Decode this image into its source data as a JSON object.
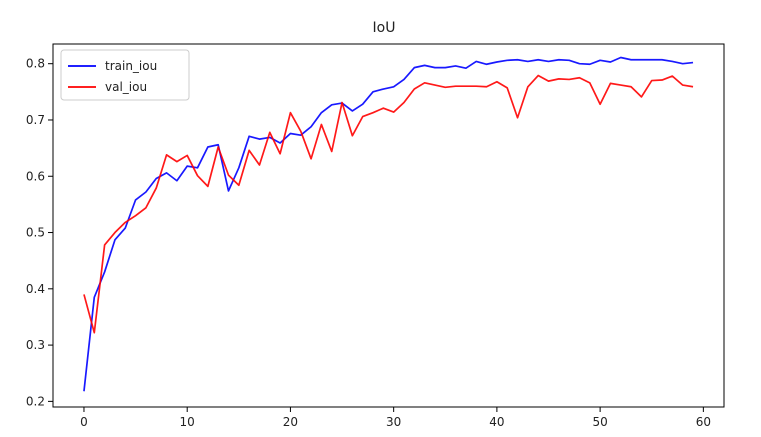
{
  "chart_data": {
    "type": "line",
    "title": "IoU",
    "xlabel": "",
    "ylabel": "",
    "xlim": [
      -3,
      62
    ],
    "ylim": [
      0.19,
      0.835
    ],
    "xticks": [
      0,
      10,
      20,
      30,
      40,
      50,
      60
    ],
    "yticks": [
      0.2,
      0.3,
      0.4,
      0.5,
      0.6,
      0.7,
      0.8
    ],
    "xtick_labels": [
      "0",
      "10",
      "20",
      "30",
      "40",
      "50",
      "60"
    ],
    "ytick_labels": [
      "0.2",
      "0.3",
      "0.4",
      "0.5",
      "0.6",
      "0.7",
      "0.8"
    ],
    "grid": false,
    "legend": "top-left",
    "x": [
      0,
      1,
      2,
      3,
      4,
      5,
      6,
      7,
      8,
      9,
      10,
      11,
      12,
      13,
      14,
      15,
      16,
      17,
      18,
      19,
      20,
      21,
      22,
      23,
      24,
      25,
      26,
      27,
      28,
      29,
      30,
      31,
      32,
      33,
      34,
      35,
      36,
      37,
      38,
      39,
      40,
      41,
      42,
      43,
      44,
      45,
      46,
      47,
      48,
      49,
      50,
      51,
      52,
      53,
      54,
      55,
      56,
      57,
      58,
      59
    ],
    "series": [
      {
        "name": "train_iou",
        "color": "#0000ff",
        "values": [
          0.218,
          0.385,
          0.43,
          0.487,
          0.508,
          0.558,
          0.572,
          0.596,
          0.606,
          0.592,
          0.618,
          0.615,
          0.652,
          0.656,
          0.574,
          0.615,
          0.671,
          0.666,
          0.669,
          0.659,
          0.676,
          0.673,
          0.688,
          0.713,
          0.727,
          0.73,
          0.716,
          0.728,
          0.75,
          0.755,
          0.759,
          0.772,
          0.793,
          0.797,
          0.793,
          0.793,
          0.796,
          0.792,
          0.804,
          0.799,
          0.803,
          0.806,
          0.807,
          0.804,
          0.807,
          0.804,
          0.807,
          0.806,
          0.8,
          0.799,
          0.806,
          0.803,
          0.811,
          0.807,
          0.807,
          0.807,
          0.807,
          0.804,
          0.8,
          0.802
        ]
      },
      {
        "name": "val_iou",
        "color": "#ff0000",
        "values": [
          0.39,
          0.322,
          0.478,
          0.5,
          0.518,
          0.53,
          0.544,
          0.579,
          0.638,
          0.626,
          0.637,
          0.601,
          0.582,
          0.652,
          0.602,
          0.584,
          0.646,
          0.62,
          0.678,
          0.64,
          0.713,
          0.68,
          0.631,
          0.692,
          0.644,
          0.731,
          0.672,
          0.706,
          0.713,
          0.721,
          0.714,
          0.731,
          0.755,
          0.766,
          0.762,
          0.758,
          0.76,
          0.76,
          0.76,
          0.759,
          0.768,
          0.757,
          0.704,
          0.759,
          0.779,
          0.769,
          0.773,
          0.772,
          0.775,
          0.766,
          0.728,
          0.765,
          0.762,
          0.759,
          0.741,
          0.77,
          0.771,
          0.778,
          0.762,
          0.759
        ]
      }
    ]
  }
}
